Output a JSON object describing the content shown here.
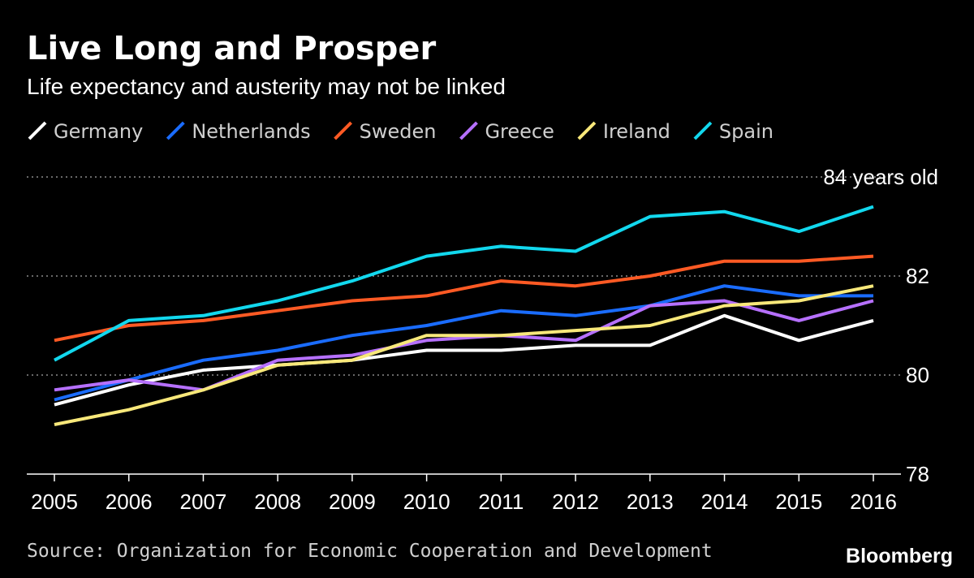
{
  "chart_data": {
    "type": "line",
    "title": "Live Long and Prosper",
    "subtitle": "Life expectancy and austerity may not be linked",
    "xlabel": "",
    "ylabel": "",
    "categories": [
      "2005",
      "2006",
      "2007",
      "2008",
      "2009",
      "2010",
      "2011",
      "2012",
      "2013",
      "2014",
      "2015",
      "2016"
    ],
    "ylim": [
      78,
      84
    ],
    "yticks": [
      {
        "value": 78,
        "label": "78"
      },
      {
        "value": 80,
        "label": "80"
      },
      {
        "value": 82,
        "label": "82"
      },
      {
        "value": 84,
        "label": "84 years old"
      }
    ],
    "grid": true,
    "legend_position": "top-left",
    "series": [
      {
        "name": "Germany",
        "color": "#ffffff",
        "values": [
          79.4,
          79.8,
          80.1,
          80.2,
          80.3,
          80.5,
          80.5,
          80.6,
          80.6,
          81.2,
          80.7,
          81.1
        ]
      },
      {
        "name": "Netherlands",
        "color": "#1a6cff",
        "values": [
          79.5,
          79.9,
          80.3,
          80.5,
          80.8,
          81.0,
          81.3,
          81.2,
          81.4,
          81.8,
          81.6,
          81.6
        ]
      },
      {
        "name": "Sweden",
        "color": "#ff5a24",
        "values": [
          80.7,
          81.0,
          81.1,
          81.3,
          81.5,
          81.6,
          81.9,
          81.8,
          82.0,
          82.3,
          82.3,
          82.4
        ]
      },
      {
        "name": "Greece",
        "color": "#b670ff",
        "values": [
          79.7,
          79.9,
          79.7,
          80.3,
          80.4,
          80.7,
          80.8,
          80.7,
          81.4,
          81.5,
          81.1,
          81.5
        ]
      },
      {
        "name": "Ireland",
        "color": "#f8e87a",
        "values": [
          79.0,
          79.3,
          79.7,
          80.2,
          80.3,
          80.8,
          80.8,
          80.9,
          81.0,
          81.4,
          81.5,
          81.8
        ]
      },
      {
        "name": "Spain",
        "color": "#12d8ee",
        "values": [
          80.3,
          81.1,
          81.2,
          81.5,
          81.9,
          82.4,
          82.6,
          82.5,
          83.2,
          83.3,
          82.9,
          83.4
        ]
      }
    ],
    "source": "Source: Organization for Economic Cooperation and Development",
    "brand": "Bloomberg"
  }
}
